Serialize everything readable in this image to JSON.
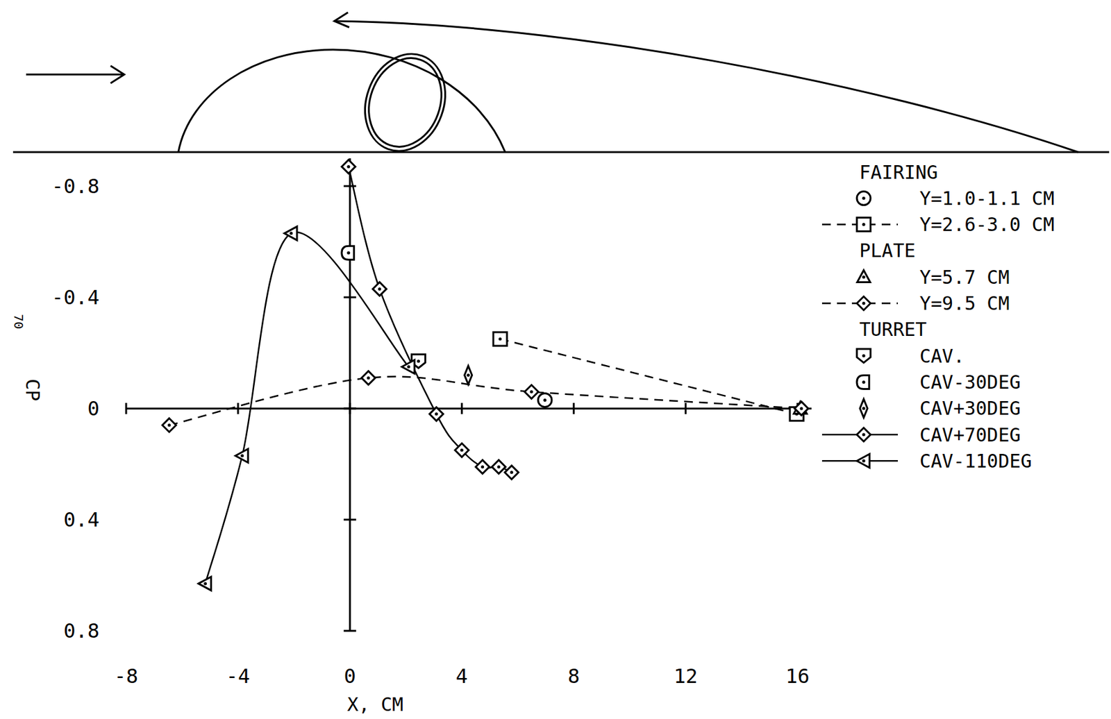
{
  "chart_data": {
    "type": "line",
    "page_number": "70",
    "x_label": "X, CM",
    "y_label": "CP",
    "color": "#000000",
    "xlim": [
      -8,
      16.5
    ],
    "ylim": [
      0.8,
      -0.9
    ],
    "xticks": [
      -8,
      -4,
      0,
      4,
      8,
      12,
      16
    ],
    "yticks": [
      -0.8,
      -0.4,
      0,
      0.4,
      0.8
    ],
    "grid": false,
    "legend": "right",
    "series": [
      {
        "name": "Y=1.0-1.1 CM",
        "group": "FAIRING",
        "marker": "circle",
        "line_style": "none",
        "x": [
          6.97
        ],
        "values": [
          -0.03
        ]
      },
      {
        "name": "Y=2.6-3.0 CM",
        "group": "FAIRING",
        "marker": "square",
        "line_style": "dashed",
        "x": [
          5.37,
          15.97
        ],
        "values": [
          -0.25,
          0.02
        ]
      },
      {
        "name": "Y=5.7 CM",
        "group": "PLATE",
        "marker": "triangle",
        "line_style": "none",
        "x": [
          16.1
        ],
        "values": [
          0.0
        ]
      },
      {
        "name": "Y=9.5 CM",
        "group": "PLATE",
        "marker": "diamond",
        "line_style": "dashed",
        "x": [
          -6.46,
          0.66,
          6.49,
          16.14
        ],
        "values": [
          0.06,
          -0.11,
          -0.06,
          0.0
        ]
      },
      {
        "name": "CAV.",
        "group": "TURRET",
        "marker": "pentagon",
        "line_style": "none",
        "x": [
          2.45
        ],
        "values": [
          -0.17
        ]
      },
      {
        "name": "CAV-30DEG",
        "group": "TURRET",
        "marker": "d-shape",
        "line_style": "none",
        "x": [
          -0.05
        ],
        "values": [
          -0.56
        ]
      },
      {
        "name": "CAV+30DEG",
        "group": "TURRET",
        "marker": "thin-diamond",
        "line_style": "none",
        "x": [
          4.23
        ],
        "values": [
          -0.12
        ]
      },
      {
        "name": "CAV+70DEG",
        "group": "TURRET",
        "marker": "diamond",
        "line_style": "solid",
        "x": [
          -0.05,
          1.06,
          3.09,
          4.0,
          4.74,
          5.32,
          5.78
        ],
        "values": [
          -0.87,
          -0.43,
          0.02,
          0.15,
          0.21,
          0.21,
          0.23
        ]
      },
      {
        "name": "CAV-110DEG",
        "group": "TURRET",
        "marker": "triangle-left",
        "line_style": "solid",
        "x": [
          -5.17,
          -3.85,
          -2.1,
          2.1
        ],
        "values": [
          0.63,
          0.17,
          -0.63,
          -0.15
        ]
      }
    ]
  }
}
